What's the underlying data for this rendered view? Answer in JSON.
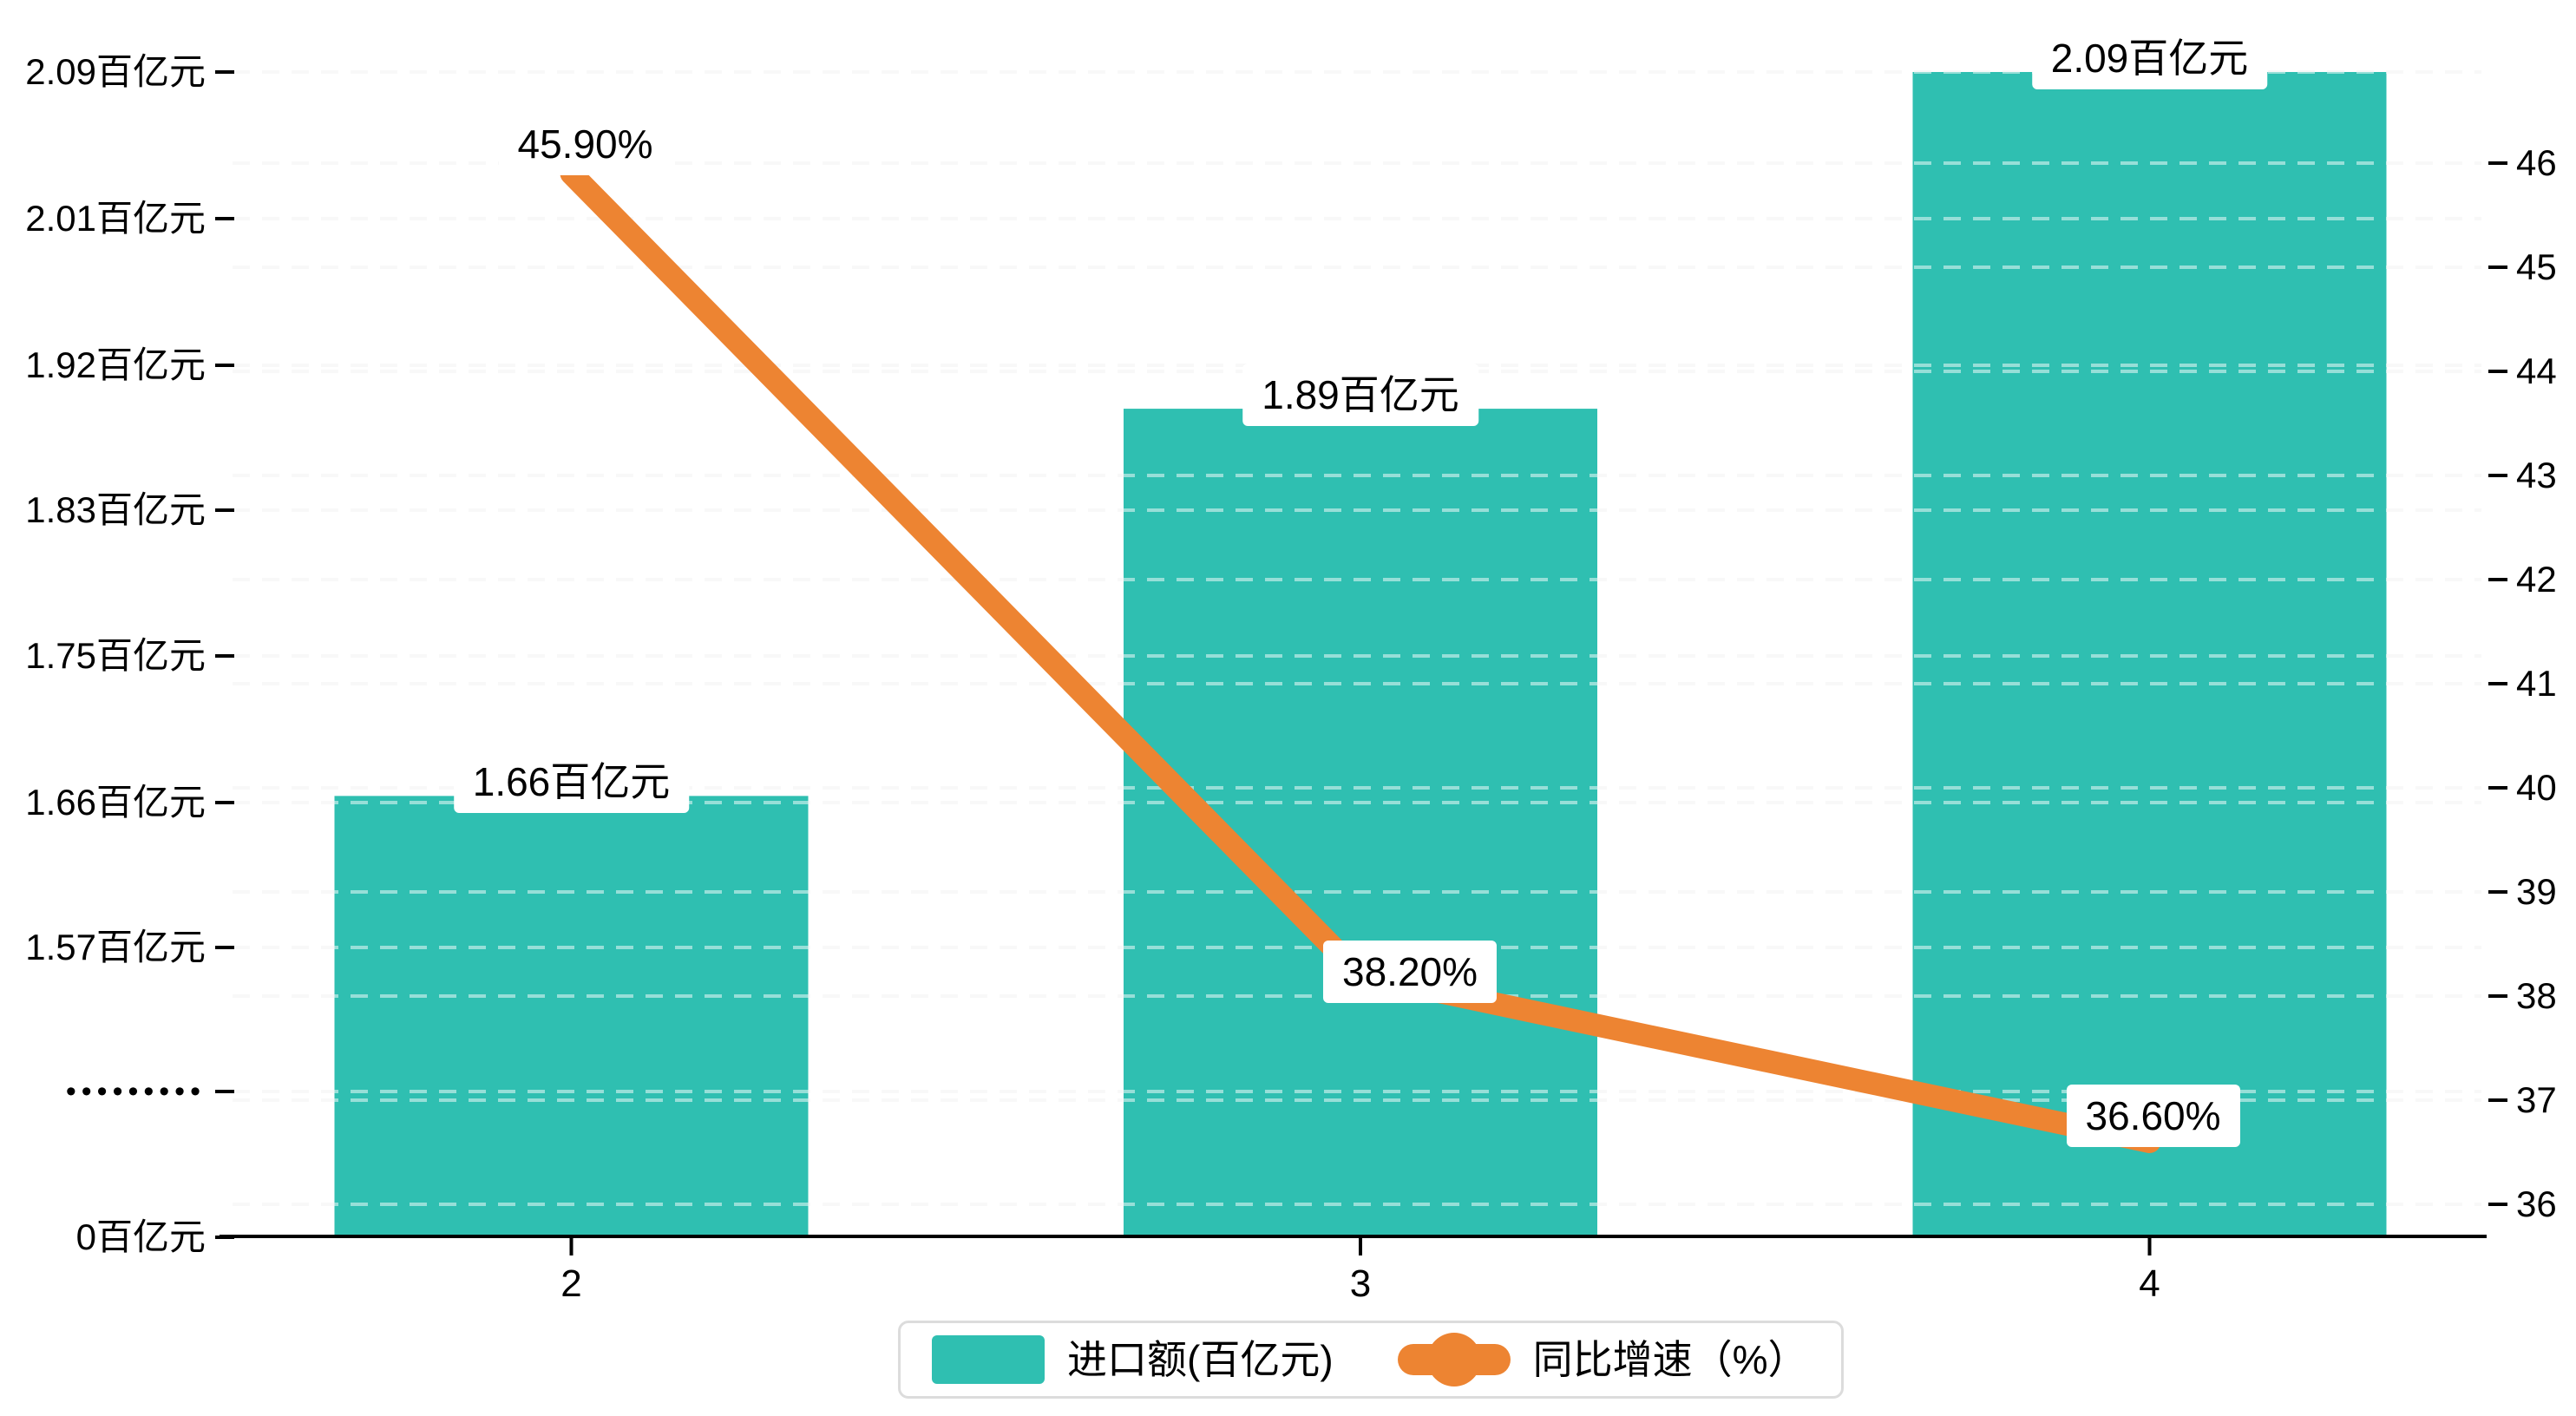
{
  "chart_data": {
    "type": "bar",
    "categories": [
      "2",
      "3",
      "4"
    ],
    "series": [
      {
        "name": "进口额(百亿元)",
        "type": "bar",
        "axis": "left",
        "color": "#2fbfb1",
        "values": [
          1.66,
          1.89,
          2.09
        ],
        "data_labels": [
          "1.66百亿元",
          "1.89百亿元",
          "2.09百亿元"
        ]
      },
      {
        "name": "同比增速（%）",
        "type": "line",
        "axis": "right",
        "color": "#ed8432",
        "values": [
          45.9,
          38.2,
          36.6
        ],
        "data_labels": [
          "45.90%",
          "38.20%",
          "36.60%"
        ]
      }
    ],
    "left_axis": {
      "tick_labels": [
        "2.09百亿元",
        "2.01百亿元",
        "1.92百亿元",
        "1.83百亿元",
        "1.75百亿元",
        "1.66百亿元",
        "1.57百亿元",
        "•••••••••",
        "0百亿元"
      ],
      "unit": "百亿元",
      "has_break": true,
      "break_label": "•••••••••"
    },
    "right_axis": {
      "tick_labels": [
        "46",
        "45",
        "44",
        "43",
        "42",
        "41",
        "40",
        "39",
        "38",
        "37",
        "36"
      ],
      "min": 36,
      "max": 46
    },
    "legend": {
      "position": "bottom",
      "items": [
        {
          "label": "进口额(百亿元)",
          "marker": "rect",
          "color": "#2fbfb1"
        },
        {
          "label": "同比增速（%）",
          "marker": "line-dot",
          "color": "#ed8432"
        }
      ]
    },
    "grid": true,
    "title": "",
    "colors": {
      "bar": "#2fbfb1",
      "line": "#ed8432",
      "gridline": "#f0f0f0",
      "axis": "#000000",
      "legend_border": "#dcdcdc",
      "label_bg": "#ffffff",
      "text": "#000000"
    }
  }
}
